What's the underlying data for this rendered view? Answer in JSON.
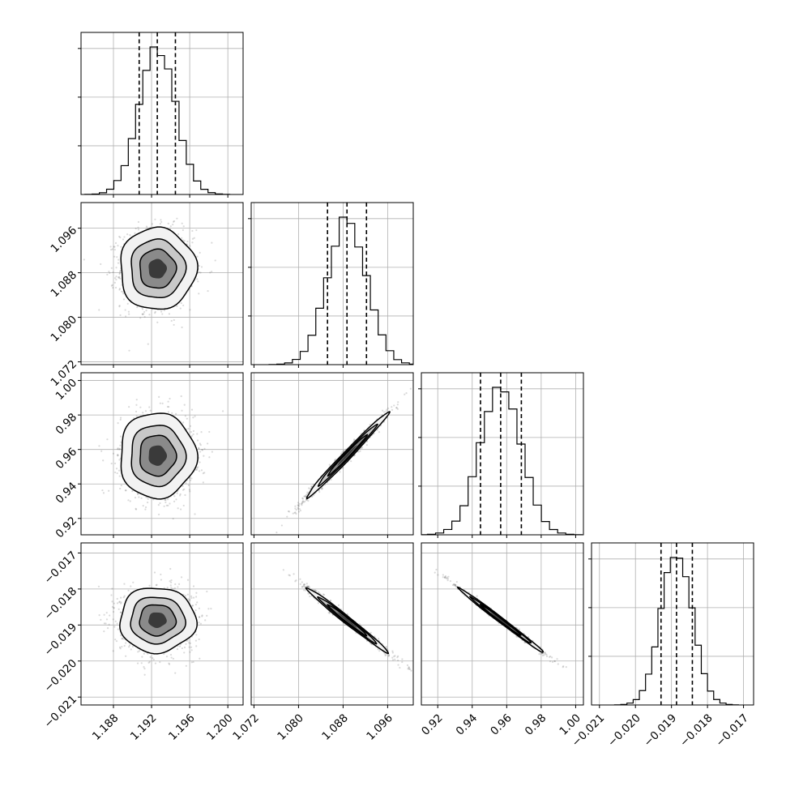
{
  "chart_data": {
    "type": "corner",
    "title": "",
    "grid": true,
    "parameters": [
      {
        "index": 0,
        "range": [
          1.1846,
          1.2016
        ],
        "median": 1.1926,
        "quantiles": [
          1.1907,
          1.1926,
          1.1945
        ],
        "sigma": 0.0019,
        "ticks": [
          1.188,
          1.192,
          1.196,
          1.2
        ],
        "tick_labels": [
          "1.188",
          "1.192",
          "1.196",
          "1.200"
        ]
      },
      {
        "index": 1,
        "range": [
          1.0715,
          1.1006
        ],
        "median": 1.0887,
        "quantiles": [
          1.0852,
          1.0887,
          1.0922
        ],
        "sigma": 0.0035,
        "ticks": [
          1.072,
          1.08,
          1.088,
          1.096
        ],
        "tick_labels": [
          "1.072",
          "1.080",
          "1.088",
          "1.096"
        ]
      },
      {
        "index": 2,
        "range": [
          0.9105,
          1.0045
        ],
        "median": 0.9565,
        "quantiles": [
          0.9448,
          0.9565,
          0.9685
        ],
        "sigma": 0.0118,
        "ticks": [
          0.92,
          0.94,
          0.96,
          0.98,
          1.0
        ],
        "tick_labels": [
          "0.92",
          "0.94",
          "0.96",
          "0.98",
          "1.00"
        ]
      },
      {
        "index": 3,
        "range": [
          -0.02122,
          -0.01672
        ],
        "median": -0.01886,
        "quantiles": [
          -0.01929,
          -0.01886,
          -0.01842
        ],
        "sigma": 0.00043,
        "ticks": [
          -0.021,
          -0.02,
          -0.019,
          -0.018,
          -0.017
        ],
        "tick_labels": [
          "−0.021",
          "−0.020",
          "−0.019",
          "−0.018",
          "−0.017"
        ]
      }
    ],
    "correlations": [
      {
        "x": 0,
        "y": 1,
        "rho": 0.0
      },
      {
        "x": 0,
        "y": 2,
        "rho": 0.0
      },
      {
        "x": 0,
        "y": 3,
        "rho": 0.0
      },
      {
        "x": 1,
        "y": 2,
        "rho": 0.99
      },
      {
        "x": 1,
        "y": 3,
        "rho": -0.99
      },
      {
        "x": 2,
        "y": 3,
        "rho": -0.995
      }
    ],
    "histogram_bins": 20
  }
}
